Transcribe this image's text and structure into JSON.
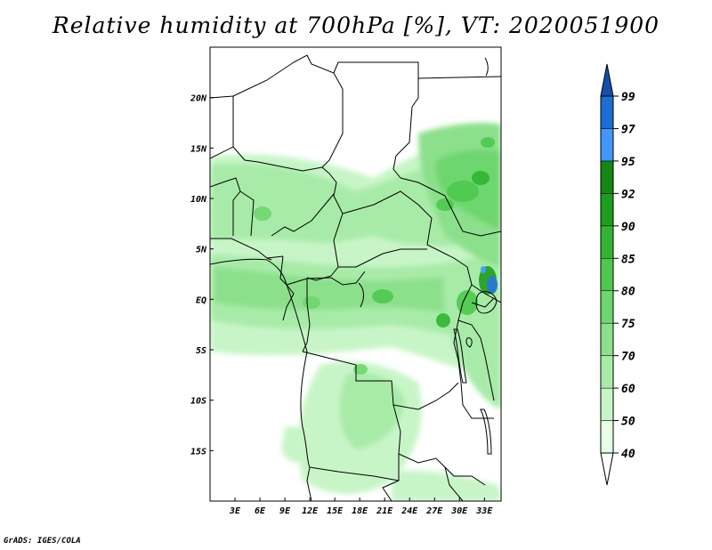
{
  "title": "Relative humidity at 700hPa [%], VT: 2020051900",
  "credit": "GrADS: IGES/COLA",
  "map": {
    "lon_range": [
      0,
      35
    ],
    "lat_range": [
      -20,
      25
    ],
    "lon_ticks": [
      {
        "value": 3,
        "label": "3E"
      },
      {
        "value": 6,
        "label": "6E"
      },
      {
        "value": 9,
        "label": "9E"
      },
      {
        "value": 12,
        "label": "12E"
      },
      {
        "value": 15,
        "label": "15E"
      },
      {
        "value": 18,
        "label": "18E"
      },
      {
        "value": 21,
        "label": "21E"
      },
      {
        "value": 24,
        "label": "24E"
      },
      {
        "value": 27,
        "label": "27E"
      },
      {
        "value": 30,
        "label": "30E"
      },
      {
        "value": 33,
        "label": "33E"
      }
    ],
    "lat_ticks": [
      {
        "value": 20,
        "label": "20N"
      },
      {
        "value": 15,
        "label": "15N"
      },
      {
        "value": 10,
        "label": "10N"
      },
      {
        "value": 5,
        "label": "5N"
      },
      {
        "value": 0,
        "label": "EQ"
      },
      {
        "value": -5,
        "label": "5S"
      },
      {
        "value": -10,
        "label": "10S"
      },
      {
        "value": -15,
        "label": "15S"
      }
    ]
  },
  "colorbar": {
    "levels": [
      "40",
      "50",
      "60",
      "70",
      "75",
      "80",
      "85",
      "90",
      "92",
      "95",
      "97",
      "99"
    ],
    "colors": [
      "#ffffff",
      "#e6ffe6",
      "#c8f5c8",
      "#a8eba8",
      "#8ce08c",
      "#6ed66e",
      "#4ec94e",
      "#32b432",
      "#1e9e1e",
      "#148714",
      "#4196ff",
      "#1c6ed2",
      "#1450aa"
    ]
  }
}
